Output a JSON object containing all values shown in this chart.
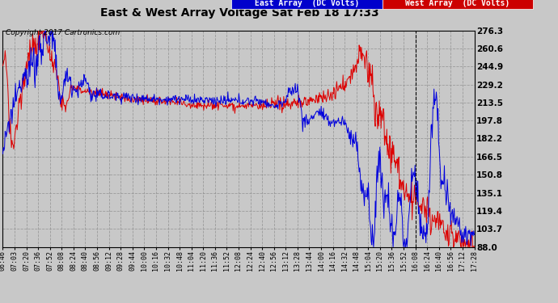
{
  "title": "East & West Array Voltage Sat Feb 18 17:33",
  "copyright": "Copyright 2017 Cartronics.com",
  "legend_east": "East Array  (DC Volts)",
  "legend_west": "West Array  (DC Volts)",
  "east_color": "#0000dd",
  "west_color": "#dd0000",
  "legend_east_bg": "#0000cc",
  "legend_west_bg": "#cc0000",
  "ylim": [
    88.0,
    276.3
  ],
  "yticks": [
    88.0,
    103.7,
    119.4,
    135.1,
    150.8,
    166.5,
    182.2,
    197.8,
    213.5,
    229.2,
    244.9,
    260.6,
    276.3
  ],
  "bg_color": "#c8c8c8",
  "plot_bg_color": "#c8c8c8",
  "grid_color": "#aaaaaa",
  "title_color": "#000000",
  "xtick_labels": [
    "06:46",
    "07:03",
    "07:20",
    "07:36",
    "07:52",
    "08:08",
    "08:24",
    "08:40",
    "08:56",
    "09:12",
    "09:28",
    "09:44",
    "10:00",
    "10:16",
    "10:32",
    "10:48",
    "11:04",
    "11:20",
    "11:36",
    "11:52",
    "12:08",
    "12:24",
    "12:40",
    "12:56",
    "13:12",
    "13:28",
    "13:44",
    "14:00",
    "14:16",
    "14:32",
    "14:48",
    "15:04",
    "15:20",
    "15:36",
    "15:52",
    "16:08",
    "16:24",
    "16:40",
    "16:56",
    "17:12",
    "17:28"
  ],
  "vline_idx": 35,
  "vline_color": "#000000"
}
